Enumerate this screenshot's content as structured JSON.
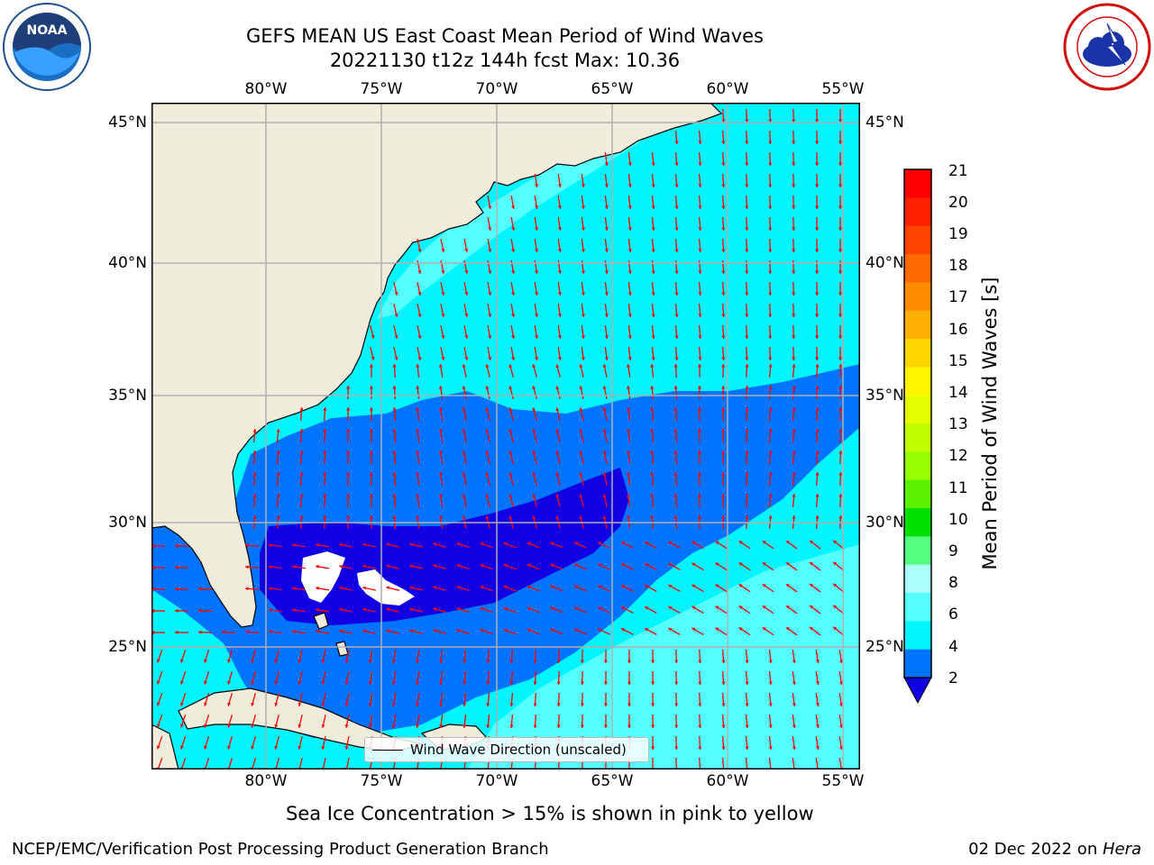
{
  "title": {
    "line1": "GEFS MEAN US East Coast Mean Period of Wind Waves",
    "line2": "20221130 t12z 144h fcst   Max: 10.36"
  },
  "logos": {
    "left": {
      "icon": "noaa-logo",
      "text": "NOAA"
    },
    "right": {
      "icon": "nws-logo",
      "text": "NATIONAL WEATHER SERVICE"
    }
  },
  "map": {
    "lon_ticks": [
      "80°W",
      "75°W",
      "70°W",
      "65°W",
      "60°W",
      "55°W"
    ],
    "lat_ticks": [
      "45°N",
      "40°N",
      "35°N",
      "30°N",
      "25°N"
    ],
    "colors": {
      "land": "#efecdc",
      "ocean_2_4": "#0073ff",
      "ocean_4_6": "#00f5ff",
      "ocean_6_8": "#54ffff",
      "below_2": "#1200e5",
      "arrows": "#ff0000"
    },
    "legend_text": "Wind Wave Direction (unscaled)"
  },
  "colorbar": {
    "label": "Mean Period of Wind Waves [s]",
    "ticks": [
      "21",
      "20",
      "19",
      "18",
      "17",
      "16",
      "15",
      "14",
      "13",
      "12",
      "11",
      "10",
      "9",
      "8",
      "6",
      "4",
      "2"
    ],
    "colors": [
      "#ff0000",
      "#ff2000",
      "#ff4400",
      "#ff6a00",
      "#ff8c00",
      "#ffb000",
      "#ffd500",
      "#fff500",
      "#e6ff00",
      "#c0ff00",
      "#96ff00",
      "#5cf000",
      "#00e000",
      "#55ff7f",
      "#aafffa",
      "#54ffff",
      "#00f5ff",
      "#0073ff"
    ],
    "extend_color": "#1200e5"
  },
  "note": "Sea Ice Concentration > 15% is shown in pink to yellow",
  "footer": {
    "left": "NCEP/EMC/Verification Post Processing Product Generation Branch",
    "date": "02 Dec 2022 on ",
    "host": "Hera"
  }
}
